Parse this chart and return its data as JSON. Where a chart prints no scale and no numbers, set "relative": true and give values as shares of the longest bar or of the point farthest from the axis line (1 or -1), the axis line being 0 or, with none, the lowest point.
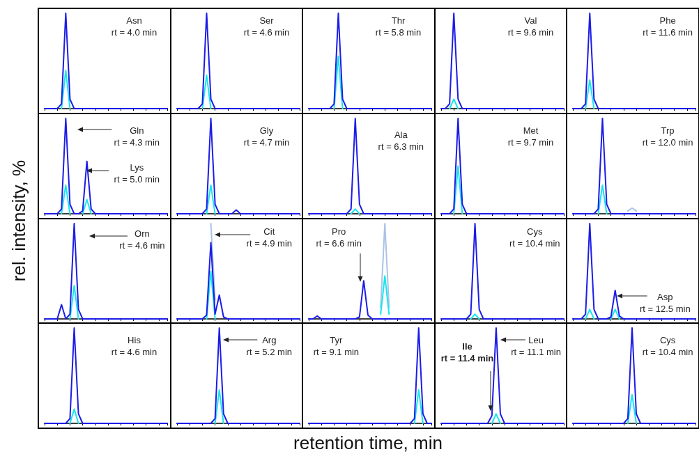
{
  "chart_data": [
    {
      "type": "line",
      "relative": true,
      "tick_labels": false,
      "categories": [
        null,
        null,
        null,
        null,
        null,
        null,
        null,
        null,
        null,
        null,
        null,
        null,
        null,
        null,
        null,
        null,
        null,
        null,
        null,
        null,
        null,
        null,
        null,
        null,
        null,
        null,
        null,
        null,
        null,
        null
      ],
      "annotations": [
        "Asn\nrt = 4.0 min"
      ],
      "series": [
        {
          "color": "#1c1ce8",
          "values": [
            0,
            0,
            0,
            0,
            0.05,
            1,
            0.1,
            0,
            0,
            0,
            0,
            0,
            0,
            0,
            0,
            0,
            0,
            0,
            0,
            0,
            0,
            0,
            0,
            0,
            0,
            0,
            0,
            0,
            0,
            0
          ]
        },
        {
          "color": "#18e6ee",
          "values": [
            null,
            null,
            null,
            null,
            0,
            0.4,
            0,
            null,
            null,
            null,
            null,
            null,
            null,
            null,
            null,
            null,
            null,
            null,
            null,
            null,
            null,
            null,
            null,
            null,
            null,
            null,
            null,
            null,
            null,
            null
          ]
        }
      ]
    },
    {
      "type": "line",
      "relative": true,
      "tick_labels": false,
      "categories": [
        null,
        null,
        null,
        null,
        null,
        null,
        null,
        null,
        null,
        null,
        null,
        null,
        null,
        null,
        null,
        null,
        null,
        null,
        null,
        null,
        null,
        null,
        null,
        null,
        null,
        null,
        null,
        null,
        null,
        null
      ],
      "annotations": [
        "Ser\nrt = 4.6 min"
      ],
      "series": [
        {
          "color": "#1c1ce8",
          "values": [
            0,
            0,
            0,
            0,
            0,
            0,
            0.05,
            1,
            0.1,
            0,
            0,
            0,
            0,
            0,
            0,
            0,
            0,
            0,
            0,
            0,
            0,
            0,
            0,
            0,
            0,
            0,
            0,
            0,
            0,
            0
          ]
        },
        {
          "color": "#18e6ee",
          "values": [
            null,
            null,
            null,
            null,
            null,
            null,
            0,
            0.35,
            0,
            null,
            null,
            null,
            null,
            null,
            null,
            null,
            null,
            null,
            null,
            null,
            null,
            null,
            null,
            null,
            null,
            null,
            null,
            null,
            null,
            null
          ]
        }
      ]
    },
    {
      "type": "line",
      "relative": true,
      "tick_labels": false,
      "categories": [
        null,
        null,
        null,
        null,
        null,
        null,
        null,
        null,
        null,
        null,
        null,
        null,
        null,
        null,
        null,
        null,
        null,
        null,
        null,
        null,
        null,
        null,
        null,
        null,
        null,
        null,
        null,
        null,
        null,
        null
      ],
      "annotations": [
        "Thr\nrt = 5.8 min"
      ],
      "series": [
        {
          "color": "#1c1ce8",
          "values": [
            0,
            0,
            0,
            0,
            0,
            0,
            0.05,
            1,
            0.1,
            0,
            0,
            0,
            0,
            0,
            0,
            0,
            0,
            0,
            0,
            0,
            0,
            0,
            0,
            0,
            0,
            0,
            0,
            0,
            0,
            0
          ]
        },
        {
          "color": "#18e6ee",
          "values": [
            null,
            null,
            null,
            null,
            null,
            null,
            0,
            0.55,
            0,
            null,
            null,
            null,
            null,
            null,
            null,
            null,
            null,
            null,
            null,
            null,
            null,
            null,
            null,
            null,
            null,
            null,
            null,
            null,
            null,
            null
          ]
        }
      ]
    },
    {
      "type": "line",
      "relative": true,
      "tick_labels": false,
      "categories": [
        null,
        null,
        null,
        null,
        null,
        null,
        null,
        null,
        null,
        null,
        null,
        null,
        null,
        null,
        null,
        null,
        null,
        null,
        null,
        null,
        null,
        null,
        null,
        null,
        null,
        null,
        null,
        null,
        null,
        null
      ],
      "annotations": [
        "Val\nrt = 9.6 min"
      ],
      "series": [
        {
          "color": "#1c1ce8",
          "values": [
            0,
            0,
            0.05,
            1,
            0.1,
            0,
            0,
            0,
            0,
            0,
            0,
            0,
            0,
            0,
            0,
            0,
            0,
            0,
            0,
            0,
            0,
            0,
            0,
            0,
            0,
            0,
            0,
            0,
            0,
            0
          ]
        },
        {
          "color": "#18e6ee",
          "values": [
            null,
            null,
            0,
            0.1,
            0,
            null,
            null,
            null,
            null,
            null,
            null,
            null,
            null,
            null,
            null,
            null,
            null,
            null,
            null,
            null,
            null,
            null,
            null,
            null,
            null,
            null,
            null,
            null,
            null,
            null
          ]
        }
      ]
    },
    {
      "type": "line",
      "relative": true,
      "tick_labels": false,
      "categories": [
        null,
        null,
        null,
        null,
        null,
        null,
        null,
        null,
        null,
        null,
        null,
        null,
        null,
        null,
        null,
        null,
        null,
        null,
        null,
        null,
        null,
        null,
        null,
        null,
        null,
        null,
        null,
        null,
        null,
        null
      ],
      "annotations": [
        "Phe\nrt = 11.6 min"
      ],
      "series": [
        {
          "color": "#1c1ce8",
          "values": [
            0,
            0,
            0,
            0.05,
            1,
            0.1,
            0,
            0,
            0,
            0,
            0,
            0,
            0,
            0,
            0,
            0,
            0,
            0,
            0,
            0,
            0,
            0,
            0,
            0,
            0,
            0,
            0,
            0,
            0,
            0
          ]
        },
        {
          "color": "#18e6ee",
          "values": [
            null,
            null,
            null,
            0,
            0.3,
            0,
            null,
            null,
            null,
            null,
            null,
            null,
            null,
            null,
            null,
            null,
            null,
            null,
            null,
            null,
            null,
            null,
            null,
            null,
            null,
            null,
            null,
            null,
            null,
            null
          ]
        }
      ]
    },
    {
      "type": "line",
      "relative": true,
      "tick_labels": false,
      "categories": [
        null,
        null,
        null,
        null,
        null,
        null,
        null,
        null,
        null,
        null,
        null,
        null,
        null,
        null,
        null,
        null,
        null,
        null,
        null,
        null,
        null,
        null,
        null,
        null,
        null,
        null,
        null,
        null,
        null,
        null
      ],
      "annotations": [
        "Gln\nrt = 4.3 min",
        "Lys\nrt = 5.0 min"
      ],
      "series": [
        {
          "color": "#1c1ce8",
          "values": [
            0,
            0,
            0,
            0,
            0.05,
            1,
            0.1,
            0,
            0,
            0.03,
            0.55,
            0.05,
            0,
            0,
            0,
            0,
            0,
            0,
            0,
            0,
            0,
            0,
            0,
            0,
            0,
            0,
            0,
            0,
            0,
            0
          ]
        },
        {
          "color": "#18e6ee",
          "values": [
            null,
            null,
            null,
            null,
            0,
            0.3,
            0,
            null,
            null,
            0,
            0.15,
            0,
            null,
            null,
            null,
            null,
            null,
            null,
            null,
            null,
            null,
            null,
            null,
            null,
            null,
            null,
            null,
            null,
            null,
            null
          ]
        }
      ]
    },
    {
      "type": "line",
      "relative": true,
      "tick_labels": false,
      "categories": [
        null,
        null,
        null,
        null,
        null,
        null,
        null,
        null,
        null,
        null,
        null,
        null,
        null,
        null,
        null,
        null,
        null,
        null,
        null,
        null,
        null,
        null,
        null,
        null,
        null,
        null,
        null,
        null,
        null,
        null
      ],
      "annotations": [
        "Gly\nrt = 4.7 min"
      ],
      "series": [
        {
          "color": "#1c1ce8",
          "values": [
            0,
            0,
            0,
            0,
            0,
            0,
            0,
            0.05,
            1,
            0.1,
            0,
            0,
            0,
            0,
            0.04,
            0,
            0,
            0,
            0,
            0,
            0,
            0,
            0,
            0,
            0,
            0,
            0,
            0,
            0,
            0
          ]
        },
        {
          "color": "#18e6ee",
          "values": [
            null,
            null,
            null,
            null,
            null,
            null,
            null,
            0,
            0.3,
            0,
            null,
            null,
            null,
            null,
            null,
            null,
            null,
            null,
            null,
            null,
            null,
            null,
            null,
            null,
            null,
            null,
            null,
            null,
            null,
            null
          ]
        }
      ]
    },
    {
      "type": "line",
      "relative": true,
      "tick_labels": false,
      "categories": [
        null,
        null,
        null,
        null,
        null,
        null,
        null,
        null,
        null,
        null,
        null,
        null,
        null,
        null,
        null,
        null,
        null,
        null,
        null,
        null,
        null,
        null,
        null,
        null,
        null,
        null,
        null,
        null,
        null,
        null
      ],
      "annotations": [
        "Ala\nrt = 6.3 min"
      ],
      "series": [
        {
          "color": "#1c1ce8",
          "values": [
            0,
            0,
            0,
            0,
            0,
            0,
            0,
            0,
            0,
            0,
            0.05,
            1,
            0.1,
            0,
            0,
            0,
            0,
            0,
            0,
            0,
            0,
            0,
            0,
            0,
            0,
            0,
            0,
            0,
            0,
            0
          ]
        },
        {
          "color": "#18e6ee",
          "values": [
            null,
            null,
            null,
            null,
            null,
            null,
            null,
            null,
            null,
            null,
            0,
            0.05,
            0,
            null,
            null,
            null,
            null,
            null,
            null,
            null,
            null,
            null,
            null,
            null,
            null,
            null,
            null,
            null,
            null,
            null
          ]
        }
      ]
    },
    {
      "type": "line",
      "relative": true,
      "tick_labels": false,
      "categories": [
        null,
        null,
        null,
        null,
        null,
        null,
        null,
        null,
        null,
        null,
        null,
        null,
        null,
        null,
        null,
        null,
        null,
        null,
        null,
        null,
        null,
        null,
        null,
        null,
        null,
        null,
        null,
        null,
        null,
        null
      ],
      "annotations": [
        "Met\nrt = 9.7 min"
      ],
      "series": [
        {
          "color": "#1c1ce8",
          "values": [
            0,
            0,
            0,
            0.05,
            1,
            0.1,
            0,
            0,
            0,
            0,
            0,
            0,
            0,
            0,
            0,
            0,
            0,
            0,
            0,
            0,
            0,
            0,
            0,
            0,
            0,
            0,
            0,
            0,
            0,
            0
          ]
        },
        {
          "color": "#18e6ee",
          "values": [
            null,
            null,
            null,
            0,
            0.5,
            0,
            null,
            null,
            null,
            null,
            null,
            null,
            null,
            null,
            null,
            null,
            null,
            null,
            null,
            null,
            null,
            null,
            null,
            null,
            null,
            null,
            null,
            null,
            null,
            null
          ]
        }
      ]
    },
    {
      "type": "line",
      "relative": true,
      "tick_labels": false,
      "categories": [
        null,
        null,
        null,
        null,
        null,
        null,
        null,
        null,
        null,
        null,
        null,
        null,
        null,
        null,
        null,
        null,
        null,
        null,
        null,
        null,
        null,
        null,
        null,
        null,
        null,
        null,
        null,
        null,
        null,
        null
      ],
      "annotations": [
        "Trp\nrt = 12.0 min"
      ],
      "series": [
        {
          "color": "#1c1ce8",
          "values": [
            0,
            0,
            0,
            0,
            0,
            0,
            0.05,
            1,
            0.1,
            0,
            0,
            0,
            0,
            0,
            0,
            0,
            0,
            0,
            0,
            0,
            0,
            0,
            0,
            0,
            0,
            0,
            0,
            0,
            0,
            0
          ]
        },
        {
          "color": "#18e6ee",
          "values": [
            null,
            null,
            null,
            null,
            null,
            null,
            0,
            0.3,
            0,
            null,
            null,
            null,
            null,
            null,
            null,
            null,
            null,
            null,
            null,
            null,
            null,
            null,
            null,
            null,
            null,
            null,
            null,
            null,
            null,
            null
          ]
        },
        {
          "color": "#a9c4e6",
          "values": [
            null,
            null,
            null,
            null,
            null,
            null,
            null,
            null,
            null,
            null,
            null,
            null,
            null,
            0.03,
            0.06,
            0.03,
            null,
            null,
            null,
            null,
            null,
            null,
            null,
            null,
            null,
            null,
            null,
            null,
            null,
            null
          ]
        }
      ]
    },
    {
      "type": "line",
      "relative": true,
      "tick_labels": false,
      "ylabel": "rel. intensity, %",
      "categories": [
        null,
        null,
        null,
        null,
        null,
        null,
        null,
        null,
        null,
        null,
        null,
        null,
        null,
        null,
        null,
        null,
        null,
        null,
        null,
        null,
        null,
        null,
        null,
        null,
        null,
        null,
        null,
        null,
        null,
        null
      ],
      "annotations": [
        "Orn\nrt = 4.6 min"
      ],
      "series": [
        {
          "color": "#1c1ce8",
          "values": [
            0,
            0,
            0,
            0,
            0.15,
            0,
            0.05,
            1,
            0.1,
            0,
            0,
            0,
            0,
            0,
            0,
            0,
            0,
            0,
            0,
            0,
            0,
            0,
            0,
            0,
            0,
            0,
            0,
            0,
            0,
            0
          ]
        },
        {
          "color": "#18e6ee",
          "values": [
            null,
            null,
            null,
            null,
            null,
            null,
            0,
            0.35,
            0,
            null,
            null,
            null,
            null,
            null,
            null,
            null,
            null,
            null,
            null,
            null,
            null,
            null,
            null,
            null,
            null,
            null,
            null,
            null,
            null,
            null
          ]
        }
      ]
    },
    {
      "type": "line",
      "relative": true,
      "tick_labels": false,
      "categories": [
        null,
        null,
        null,
        null,
        null,
        null,
        null,
        null,
        null,
        null,
        null,
        null,
        null,
        null,
        null,
        null,
        null,
        null,
        null,
        null,
        null,
        null,
        null,
        null,
        null,
        null,
        null,
        null,
        null,
        null
      ],
      "annotations": [
        "Cit\nrt = 4.9 min"
      ],
      "series": [
        {
          "color": "#1c1ce8",
          "values": [
            0,
            0,
            0,
            0,
            0,
            0,
            0,
            0.04,
            0.8,
            0.05,
            0.25,
            0.02,
            0,
            0,
            0,
            0,
            0,
            0,
            0,
            0,
            0,
            0,
            0,
            0,
            0,
            0,
            0,
            0,
            0,
            0
          ]
        },
        {
          "color": "#18e6ee",
          "values": [
            null,
            null,
            null,
            null,
            null,
            null,
            null,
            0,
            0.5,
            0,
            null,
            null,
            null,
            null,
            null,
            null,
            null,
            null,
            null,
            null,
            null,
            null,
            null,
            null,
            null,
            null,
            null,
            null,
            null,
            null
          ]
        },
        {
          "color": "#a9c4e6",
          "values": [
            null,
            null,
            null,
            null,
            null,
            null,
            null,
            null,
            1,
            0.2,
            null,
            null,
            null,
            null,
            null,
            null,
            null,
            null,
            null,
            null,
            null,
            null,
            null,
            null,
            null,
            null,
            null,
            null,
            null,
            null
          ]
        }
      ]
    },
    {
      "type": "line",
      "relative": true,
      "tick_labels": false,
      "categories": [
        null,
        null,
        null,
        null,
        null,
        null,
        null,
        null,
        null,
        null,
        null,
        null,
        null,
        null,
        null,
        null,
        null,
        null,
        null,
        null,
        null,
        null,
        null,
        null,
        null,
        null,
        null,
        null,
        null,
        null
      ],
      "annotations": [
        "Pro\nrt = 6.6 min"
      ],
      "series": [
        {
          "color": "#1c1ce8",
          "values": [
            0,
            0,
            0.03,
            0,
            0,
            0,
            0,
            0,
            0,
            0,
            0,
            0,
            0.02,
            0.4,
            0.04,
            0,
            0,
            0,
            0,
            0,
            0,
            0,
            0,
            0,
            0,
            0,
            0,
            0,
            0,
            0
          ]
        },
        {
          "color": "#18e6ee",
          "values": [
            null,
            null,
            null,
            null,
            null,
            null,
            null,
            null,
            null,
            null,
            null,
            null,
            null,
            null,
            null,
            null,
            null,
            0.05,
            0.45,
            0.05,
            null,
            null,
            null,
            null,
            null,
            null,
            null,
            null,
            null,
            null
          ]
        },
        {
          "color": "#a9c4e6",
          "values": [
            null,
            null,
            null,
            null,
            null,
            null,
            null,
            null,
            null,
            null,
            null,
            null,
            null,
            null,
            null,
            null,
            null,
            0.12,
            1,
            0.12,
            null,
            null,
            null,
            null,
            null,
            null,
            null,
            null,
            null,
            null
          ]
        }
      ]
    },
    {
      "type": "line",
      "relative": true,
      "tick_labels": false,
      "categories": [
        null,
        null,
        null,
        null,
        null,
        null,
        null,
        null,
        null,
        null,
        null,
        null,
        null,
        null,
        null,
        null,
        null,
        null,
        null,
        null,
        null,
        null,
        null,
        null,
        null,
        null,
        null,
        null,
        null,
        null
      ],
      "annotations": [
        "Cys\nrt = 10.4 min"
      ],
      "series": [
        {
          "color": "#1c1ce8",
          "values": [
            0,
            0,
            0,
            0,
            0,
            0,
            0,
            0.05,
            1,
            0.1,
            0,
            0,
            0,
            0,
            0,
            0,
            0,
            0,
            0,
            0,
            0,
            0,
            0,
            0,
            0,
            0,
            0,
            0,
            0,
            0
          ]
        },
        {
          "color": "#18e6ee",
          "values": [
            null,
            null,
            null,
            null,
            null,
            null,
            null,
            0,
            0.05,
            0,
            null,
            null,
            null,
            null,
            null,
            null,
            null,
            null,
            null,
            null,
            null,
            null,
            null,
            null,
            null,
            null,
            null,
            null,
            null,
            null
          ]
        }
      ]
    },
    {
      "type": "line",
      "relative": true,
      "tick_labels": false,
      "categories": [
        null,
        null,
        null,
        null,
        null,
        null,
        null,
        null,
        null,
        null,
        null,
        null,
        null,
        null,
        null,
        null,
        null,
        null,
        null,
        null,
        null,
        null,
        null,
        null,
        null,
        null,
        null,
        null,
        null,
        null
      ],
      "annotations": [
        "Asp\nrt = 12.5 min"
      ],
      "series": [
        {
          "color": "#1c1ce8",
          "values": [
            0,
            0,
            0,
            0.05,
            1,
            0.1,
            0,
            0,
            0,
            0.02,
            0.3,
            0.03,
            0,
            0,
            0,
            0,
            0,
            0,
            0,
            0,
            0,
            0,
            0,
            0,
            0,
            0,
            0,
            0,
            0,
            0
          ]
        },
        {
          "color": "#18e6ee",
          "values": [
            null,
            null,
            null,
            0,
            0.1,
            0,
            null,
            null,
            null,
            0,
            0.1,
            0,
            null,
            null,
            null,
            null,
            null,
            null,
            null,
            null,
            null,
            null,
            null,
            null,
            null,
            null,
            null,
            null,
            null,
            null
          ]
        }
      ]
    },
    {
      "type": "line",
      "relative": true,
      "tick_labels": false,
      "categories": [
        null,
        null,
        null,
        null,
        null,
        null,
        null,
        null,
        null,
        null,
        null,
        null,
        null,
        null,
        null,
        null,
        null,
        null,
        null,
        null,
        null,
        null,
        null,
        null,
        null,
        null,
        null,
        null,
        null,
        null
      ],
      "annotations": [
        "His\nrt = 4.6 min"
      ],
      "series": [
        {
          "color": "#1c1ce8",
          "values": [
            0,
            0,
            0,
            0,
            0,
            0,
            0.05,
            1,
            0.1,
            0,
            0,
            0,
            0,
            0,
            0,
            0,
            0,
            0,
            0,
            0,
            0,
            0,
            0,
            0,
            0,
            0,
            0,
            0,
            0,
            0
          ]
        },
        {
          "color": "#18e6ee",
          "values": [
            null,
            null,
            null,
            null,
            null,
            null,
            0,
            0.15,
            0,
            null,
            null,
            null,
            null,
            null,
            null,
            null,
            null,
            null,
            null,
            null,
            null,
            null,
            null,
            null,
            null,
            null,
            null,
            null,
            null,
            null
          ]
        }
      ]
    },
    {
      "type": "line",
      "relative": true,
      "tick_labels": false,
      "categories": [
        null,
        null,
        null,
        null,
        null,
        null,
        null,
        null,
        null,
        null,
        null,
        null,
        null,
        null,
        null,
        null,
        null,
        null,
        null,
        null,
        null,
        null,
        null,
        null,
        null,
        null,
        null,
        null,
        null,
        null
      ],
      "annotations": [
        "Arg\nrt = 5.2 min"
      ],
      "series": [
        {
          "color": "#1c1ce8",
          "values": [
            0,
            0,
            0,
            0,
            0,
            0,
            0,
            0,
            0,
            0.05,
            1,
            0.1,
            0,
            0,
            0,
            0,
            0,
            0,
            0,
            0,
            0,
            0,
            0,
            0,
            0,
            0,
            0,
            0,
            0,
            0
          ]
        },
        {
          "color": "#18e6ee",
          "values": [
            null,
            null,
            null,
            null,
            null,
            null,
            null,
            null,
            null,
            0,
            0.35,
            0,
            null,
            null,
            null,
            null,
            null,
            null,
            null,
            null,
            null,
            null,
            null,
            null,
            null,
            null,
            null,
            null,
            null,
            null
          ]
        }
      ]
    },
    {
      "type": "line",
      "relative": true,
      "tick_labels": false,
      "xlabel": "retention time, min",
      "categories": [
        null,
        null,
        null,
        null,
        null,
        null,
        null,
        null,
        null,
        null,
        null,
        null,
        null,
        null,
        null,
        null,
        null,
        null,
        null,
        null,
        null,
        null,
        null,
        null,
        null,
        null,
        null,
        null,
        null,
        null
      ],
      "annotations": [
        "Tyr\nrt = 9.1 min"
      ],
      "series": [
        {
          "color": "#1c1ce8",
          "values": [
            0,
            0,
            0,
            0,
            0,
            0,
            0,
            0,
            0,
            0,
            0,
            0,
            0,
            0,
            0,
            0,
            0,
            0,
            0,
            0,
            0,
            0,
            0,
            0,
            0,
            0.05,
            1,
            0.1,
            0,
            0
          ]
        },
        {
          "color": "#18e6ee",
          "values": [
            null,
            null,
            null,
            null,
            null,
            null,
            null,
            null,
            null,
            null,
            null,
            null,
            null,
            null,
            null,
            null,
            null,
            null,
            null,
            null,
            null,
            null,
            null,
            null,
            null,
            0,
            0.35,
            0,
            null,
            null
          ]
        }
      ]
    },
    {
      "type": "line",
      "relative": true,
      "tick_labels": false,
      "categories": [
        null,
        null,
        null,
        null,
        null,
        null,
        null,
        null,
        null,
        null,
        null,
        null,
        null,
        null,
        null,
        null,
        null,
        null,
        null,
        null,
        null,
        null,
        null,
        null,
        null,
        null,
        null,
        null,
        null,
        null
      ],
      "annotations": [
        "Leu\nrt = 11.1 min",
        "Ile\nrt = 11.4 min"
      ],
      "series": [
        {
          "color": "#1c1ce8",
          "values": [
            0,
            0,
            0,
            0,
            0,
            0,
            0,
            0,
            0,
            0,
            0,
            0,
            0.08,
            1,
            0.1,
            0,
            0,
            0,
            0,
            0,
            0,
            0,
            0,
            0,
            0,
            0,
            0,
            0,
            0,
            0
          ]
        },
        {
          "color": "#18e6ee",
          "values": [
            null,
            null,
            null,
            null,
            null,
            null,
            null,
            null,
            null,
            null,
            null,
            null,
            0,
            0.1,
            0,
            null,
            null,
            null,
            null,
            null,
            null,
            null,
            null,
            null,
            null,
            null,
            null,
            null,
            null,
            null
          ]
        }
      ]
    },
    {
      "type": "line",
      "relative": true,
      "tick_labels": false,
      "categories": [
        null,
        null,
        null,
        null,
        null,
        null,
        null,
        null,
        null,
        null,
        null,
        null,
        null,
        null,
        null,
        null,
        null,
        null,
        null,
        null,
        null,
        null,
        null,
        null,
        null,
        null,
        null,
        null,
        null,
        null
      ],
      "annotations": [
        "Cys\nrt = 10.4 min"
      ],
      "series": [
        {
          "color": "#1c1ce8",
          "values": [
            0,
            0,
            0,
            0,
            0,
            0,
            0,
            0,
            0,
            0,
            0,
            0,
            0,
            0.05,
            1,
            0.1,
            0,
            0,
            0,
            0,
            0,
            0,
            0,
            0,
            0,
            0,
            0,
            0,
            0,
            0
          ]
        },
        {
          "color": "#18e6ee",
          "values": [
            null,
            null,
            null,
            null,
            null,
            null,
            null,
            null,
            null,
            null,
            null,
            null,
            null,
            0,
            0.3,
            0,
            null,
            null,
            null,
            null,
            null,
            null,
            null,
            null,
            null,
            null,
            null,
            null,
            null,
            null
          ]
        }
      ]
    }
  ]
}
